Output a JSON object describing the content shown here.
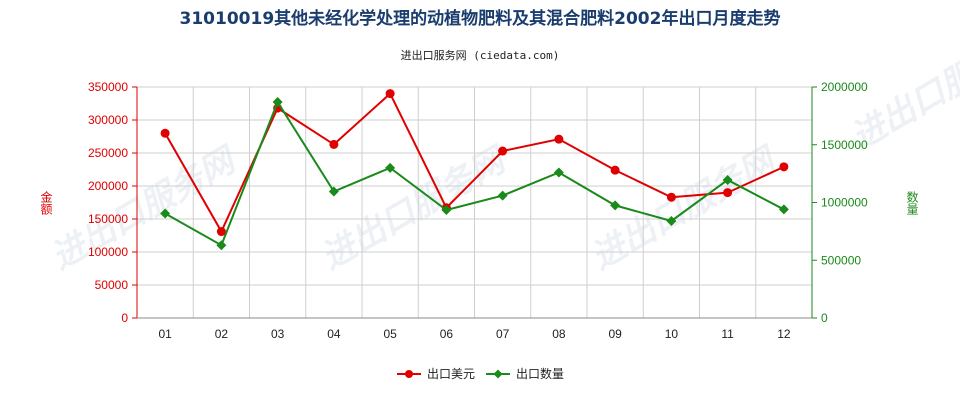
{
  "title": "31010019其他未经化学处理的动植物肥料及其混合肥料2002年出口月度走势",
  "subtitle": "进出口服务网 (ciedata.com)",
  "watermark": "进出口服务网",
  "colors": {
    "left_axis": "#e00000",
    "right_axis": "#1a8a1a",
    "series1": "#e00000",
    "series2": "#1a8a1a",
    "title": "#1a3d6e"
  },
  "chart_data": {
    "type": "line",
    "categories": [
      "01",
      "02",
      "03",
      "04",
      "05",
      "06",
      "07",
      "08",
      "09",
      "10",
      "11",
      "12"
    ],
    "y_left": {
      "label": "金额",
      "lim": [
        0,
        350000
      ],
      "ticks": [
        0,
        50000,
        100000,
        150000,
        200000,
        250000,
        300000,
        350000
      ],
      "tick_labels": [
        "0",
        "50000",
        "100000",
        "150000",
        "200000",
        "250000",
        "300000",
        "350000"
      ]
    },
    "y_right": {
      "label": "数量",
      "lim": [
        0,
        2000000
      ],
      "ticks": [
        0,
        500000,
        1000000,
        1500000,
        2000000
      ],
      "tick_labels": [
        "0",
        "500000",
        "1000000",
        "1500000",
        "2000000"
      ]
    },
    "series": [
      {
        "name": "出口美元",
        "axis": "left",
        "values": [
          280000,
          131000,
          318000,
          263000,
          340000,
          167000,
          253000,
          271000,
          224000,
          183000,
          190000,
          229000
        ]
      },
      {
        "name": "出口数量",
        "axis": "right",
        "values": [
          905000,
          630000,
          1870000,
          1095000,
          1300000,
          935000,
          1060000,
          1260000,
          975000,
          840000,
          1195000,
          940000
        ]
      }
    ],
    "grid": true,
    "legend_position": "bottom-center"
  }
}
